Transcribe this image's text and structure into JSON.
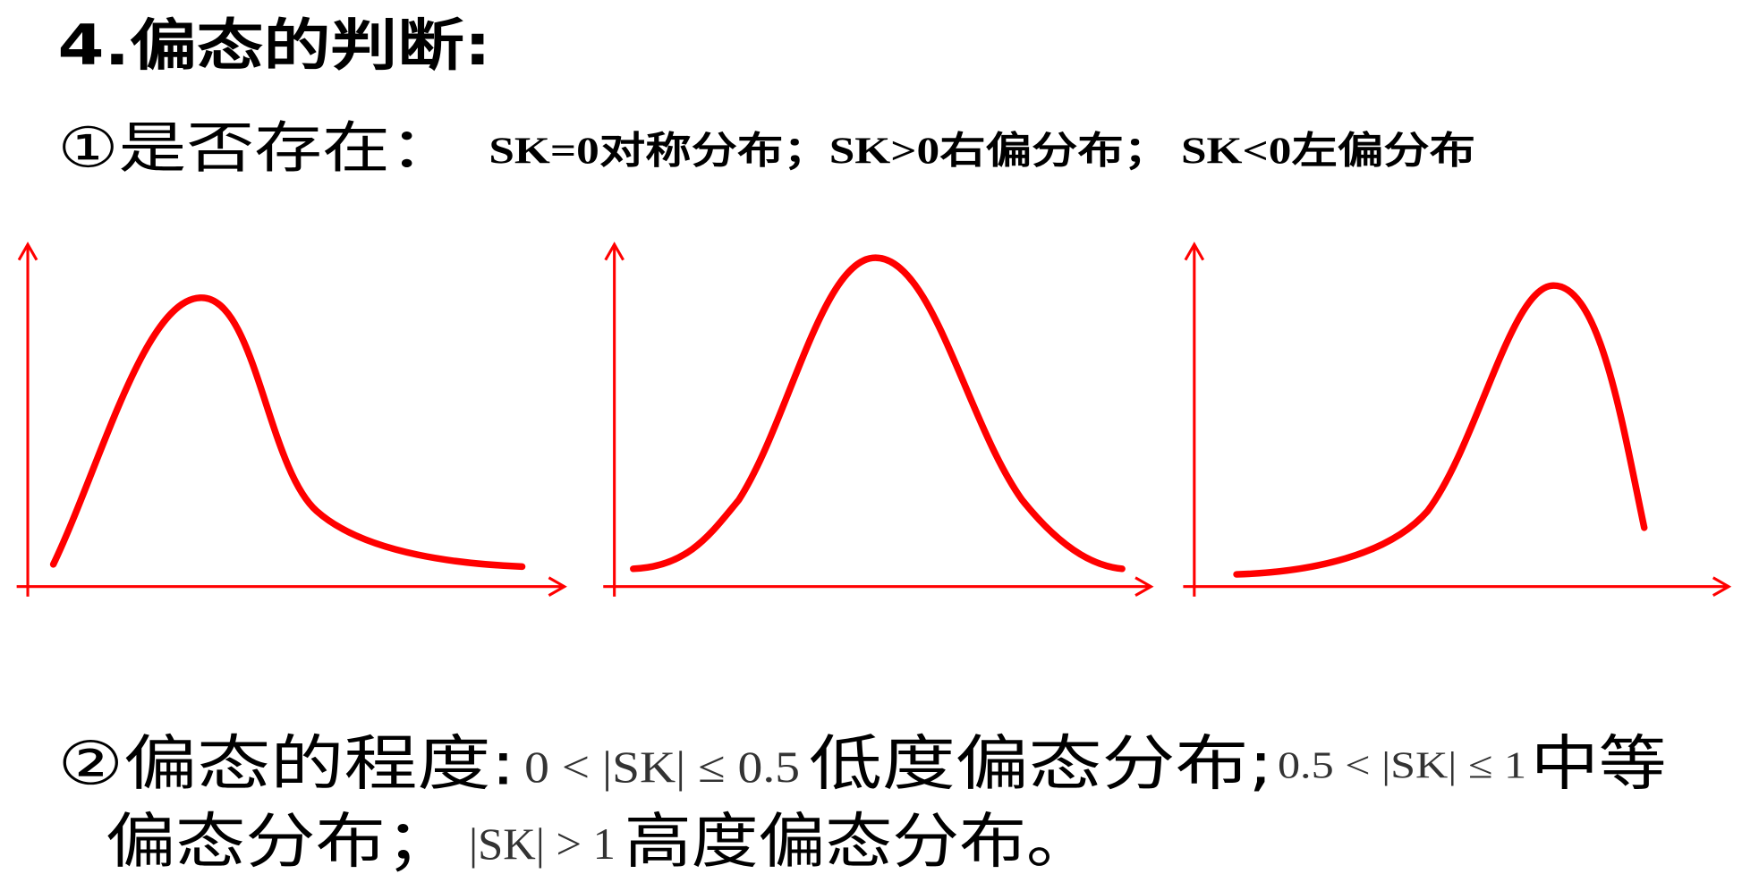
{
  "title": "4.偏态的判断:",
  "existence": {
    "label": "①是否存在：",
    "rule": "SK=0对称分布；SK>0右偏分布； SK<0左偏分布"
  },
  "degree": {
    "label": "②偏态的程度:",
    "low_range": "0 < |SK| ≤ 0.5",
    "low_text": "低度偏态分布;",
    "mid_range": "0.5 < |SK| ≤ 1",
    "mid_text_1": "中等",
    "mid_text_2": "偏态分布；",
    "high_range": "|SK| > 1",
    "high_text": "高度偏态分布。"
  }
}
